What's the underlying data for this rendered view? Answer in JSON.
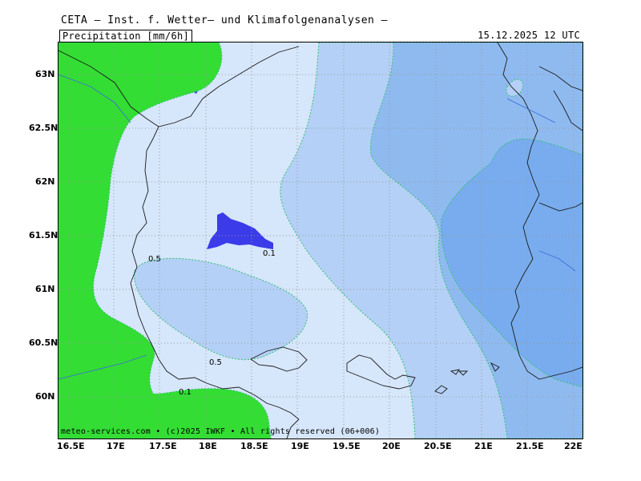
{
  "header": {
    "title": "CETA — Inst. f. Wetter— und Klimafolgenanalysen —",
    "parameter": "Precipitation [mm/6h]",
    "valid_time": "15.12.2025 12 UTC"
  },
  "footer": {
    "credit": "meteo-services.com • (c)2025 IWKF • All rights reserved (06+006)"
  },
  "axes": {
    "latitude_labels": [
      "63N",
      "62.5N",
      "62N",
      "61.5N",
      "61N",
      "60.5N",
      "60N"
    ],
    "longitude_labels": [
      "16.5E",
      "17E",
      "17.5E",
      "18E",
      "18.5E",
      "19E",
      "19.5E",
      "20E",
      "20.5E",
      "21E",
      "21.5E",
      "22E"
    ]
  },
  "contours": {
    "labels": [
      "0.5",
      "0.1",
      "0.5",
      "0.1"
    ]
  },
  "colors": {
    "land_no_precip": "#33dd33",
    "precip_light": "#d6e6fb",
    "precip_mid": "#b4d0f6",
    "precip_heavy": "#8fbaf0",
    "precip_heavier": "#78acee",
    "precip_max": "#3b3bea",
    "coastline": "#1a1a1a",
    "grid": "#999999"
  }
}
